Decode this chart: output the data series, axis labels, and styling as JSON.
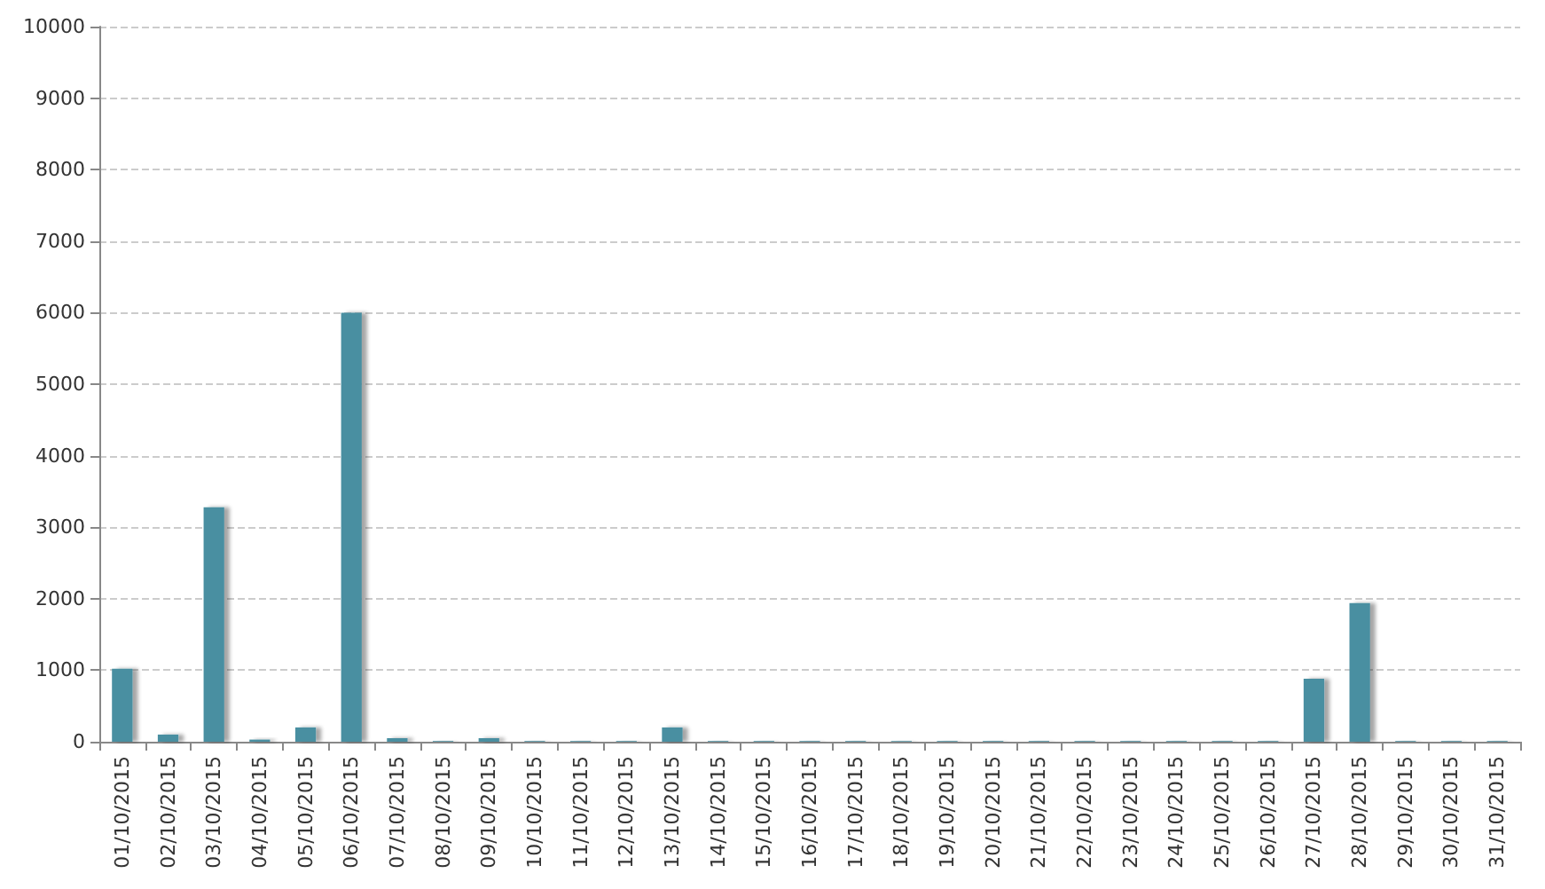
{
  "chart_data": {
    "type": "bar",
    "categories": [
      "01/10/2015",
      "02/10/2015",
      "03/10/2015",
      "04/10/2015",
      "05/10/2015",
      "06/10/2015",
      "07/10/2015",
      "08/10/2015",
      "09/10/2015",
      "10/10/2015",
      "11/10/2015",
      "12/10/2015",
      "13/10/2015",
      "14/10/2015",
      "15/10/2015",
      "16/10/2015",
      "17/10/2015",
      "18/10/2015",
      "19/10/2015",
      "20/10/2015",
      "21/10/2015",
      "22/10/2015",
      "23/10/2015",
      "24/10/2015",
      "25/10/2015",
      "26/10/2015",
      "27/10/2015",
      "28/10/2015",
      "29/10/2015",
      "30/10/2015",
      "31/10/2015"
    ],
    "values": [
      1020,
      100,
      3280,
      30,
      200,
      6000,
      50,
      10,
      50,
      10,
      10,
      10,
      200,
      10,
      10,
      10,
      10,
      10,
      10,
      10,
      10,
      10,
      10,
      10,
      10,
      10,
      880,
      1940,
      10,
      10,
      10
    ],
    "color": "#4a8fa1",
    "ylim": [
      0,
      10000
    ],
    "yticks": [
      0,
      1000,
      2000,
      3000,
      4000,
      5000,
      6000,
      7000,
      8000,
      9000,
      10000
    ],
    "grid": "y"
  }
}
